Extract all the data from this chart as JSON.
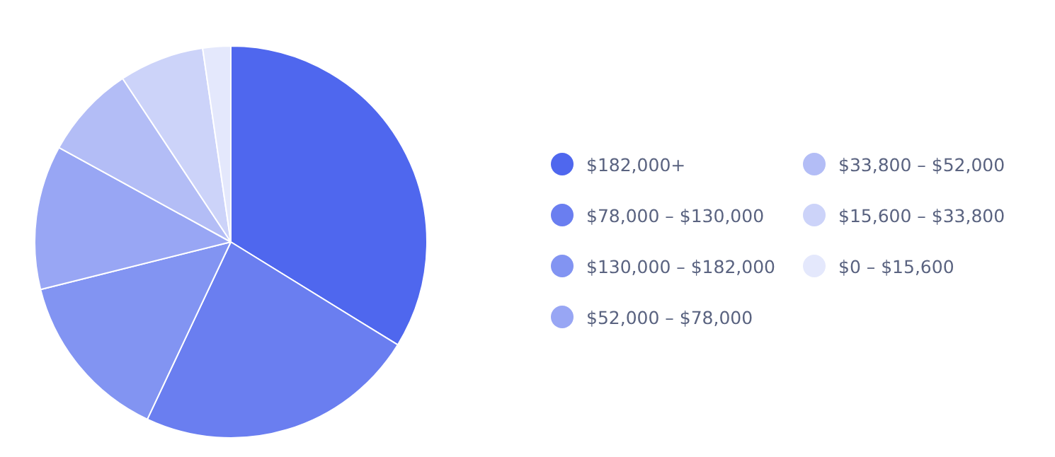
{
  "chart_data": {
    "type": "pie",
    "categories": [
      "$182,000+",
      "$78,000 – $130,000",
      "$130,000 – $182,000",
      "$52,000 – $78,000",
      "$33,800 – $52,000",
      "$15,600 – $33,800",
      "$0 – $15,600"
    ],
    "values": [
      33.8,
      23.2,
      14.1,
      11.9,
      7.7,
      7.0,
      2.3
    ],
    "colors": [
      "#4f67ee",
      "#6a7ef0",
      "#8294f2",
      "#98a6f4",
      "#b3bdf6",
      "#ccd3f9",
      "#e4e8fc"
    ],
    "legend": "right"
  }
}
